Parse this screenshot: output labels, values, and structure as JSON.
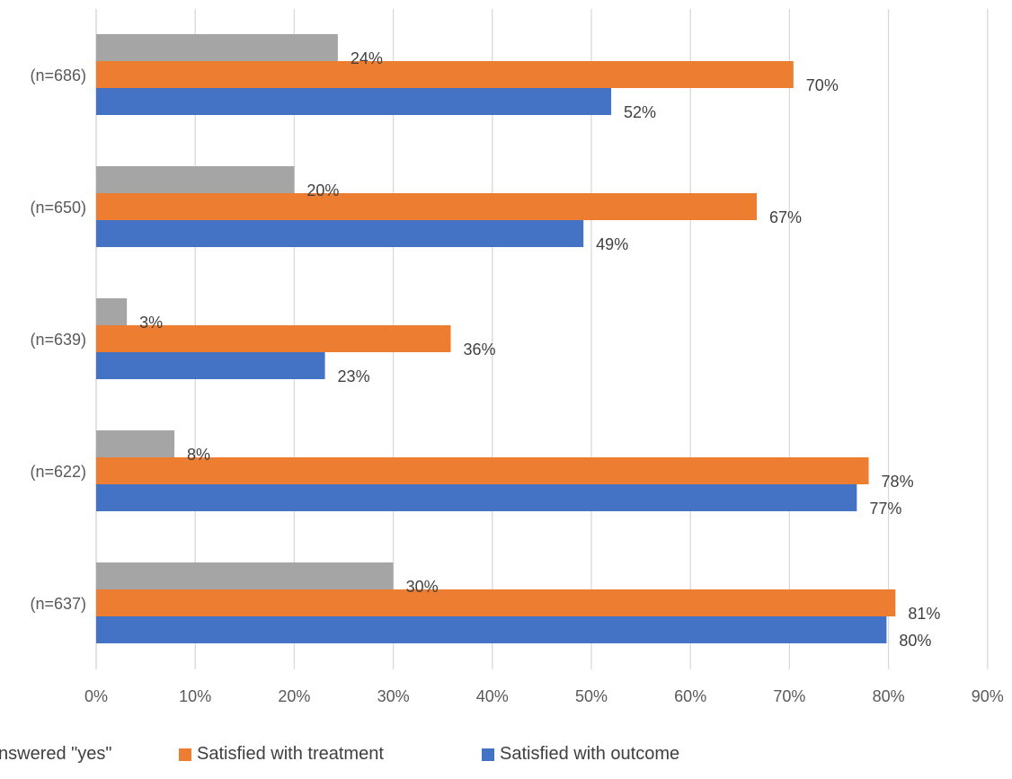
{
  "chart_data": {
    "type": "bar",
    "orientation": "horizontal",
    "categories": [
      "(n=686)",
      "(n=650)",
      "(n=639)",
      "(n=622)",
      "(n=637)"
    ],
    "series": [
      {
        "name": "nswered \"yes\"",
        "color": "#a5a5a5",
        "values": [
          24.4,
          20,
          3.1,
          7.9,
          30
        ],
        "labels": [
          "24%",
          "20%",
          "3%",
          "8%",
          "30%"
        ]
      },
      {
        "name": "Satisfied with treatment",
        "color": "#ed7d31",
        "values": [
          70.4,
          66.7,
          35.8,
          78,
          80.7
        ],
        "labels": [
          "70%",
          "67%",
          "36%",
          "78%",
          "81%"
        ]
      },
      {
        "name": "Satisfied with outcome",
        "color": "#4472c4",
        "values": [
          52,
          49.2,
          23.1,
          76.8,
          79.8
        ],
        "labels": [
          "52%",
          "49%",
          "23%",
          "77%",
          "80%"
        ]
      }
    ],
    "x_ticks": [
      "0%",
      "10%",
      "20%",
      "30%",
      "40%",
      "50%",
      "60%",
      "70%",
      "80%",
      "90%"
    ],
    "xlim": [
      0,
      90
    ],
    "grid": "vertical",
    "legend_position": "bottom"
  }
}
